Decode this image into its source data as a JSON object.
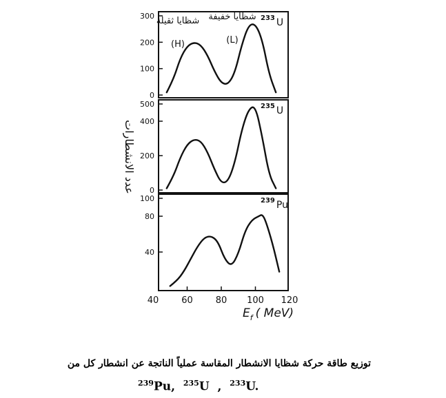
{
  "chart_data": [
    {
      "type": "line",
      "nuclide": "233U",
      "nuclide_label": "233",
      "nuclide_symbol": "U",
      "ylim": [
        0,
        300
      ],
      "yticks": [
        0,
        100,
        200,
        300
      ],
      "peak_labels": [
        {
          "text_ar": "شظايا ثقيلة",
          "text": "(H)"
        },
        {
          "text_ar": "شظايا خفيفة",
          "text": "(L)"
        }
      ],
      "x": [
        48,
        52,
        56,
        60,
        64,
        68,
        72,
        76,
        80,
        84,
        88,
        92,
        96,
        100,
        104,
        108,
        112
      ],
      "y": [
        10,
        60,
        140,
        185,
        200,
        190,
        150,
        90,
        45,
        40,
        85,
        190,
        265,
        270,
        210,
        80,
        10
      ]
    },
    {
      "type": "line",
      "nuclide": "235U",
      "nuclide_label": "235",
      "nuclide_symbol": "U",
      "ylim": [
        0,
        500
      ],
      "yticks": [
        0,
        200,
        400,
        500
      ],
      "x": [
        48,
        52,
        56,
        60,
        64,
        68,
        72,
        76,
        80,
        84,
        88,
        92,
        96,
        100,
        104,
        108,
        112
      ],
      "y": [
        10,
        80,
        190,
        265,
        295,
        285,
        220,
        120,
        40,
        50,
        160,
        350,
        470,
        490,
        310,
        90,
        10
      ]
    },
    {
      "type": "line",
      "nuclide": "239Pu",
      "nuclide_label": "239",
      "nuclide_symbol": "Pu",
      "ylim": [
        0,
        100
      ],
      "yticks": [
        40,
        80,
        100
      ],
      "x": [
        50,
        54,
        58,
        62,
        66,
        70,
        74,
        78,
        82,
        86,
        90,
        94,
        98,
        102,
        104,
        106,
        110,
        114
      ],
      "y": [
        2,
        8,
        18,
        32,
        46,
        56,
        58,
        52,
        32,
        24,
        38,
        64,
        76,
        80,
        82,
        75,
        50,
        18
      ]
    }
  ],
  "xaxis": {
    "ticks": [
      40,
      60,
      80,
      100,
      120
    ],
    "label_var": "E",
    "label_sub": "f",
    "label_unit": "( MeV)"
  },
  "ylabel": "عدد الانشطارات",
  "caption": {
    "line1": "توزيع طاقة حركة شظايا الانشطار المقاسة عملياً الناتجة عن انشطار كل من",
    "line2_pu_mass": "239",
    "line2_pu": "Pu,",
    "line2_u235_mass": "235",
    "line2_u235": "U",
    "line2_sep": ",",
    "line2_u233_mass": "233",
    "line2_u233": "U",
    "line2_end": "."
  },
  "colors": {
    "ink": "#111111"
  }
}
